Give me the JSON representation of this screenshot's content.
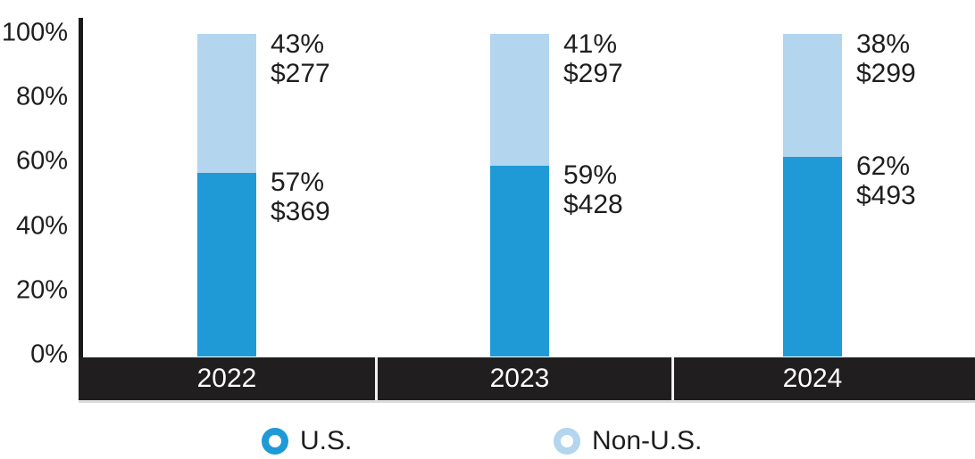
{
  "colors": {
    "us": "#1F9AD7",
    "non_us": "#B3D5EE",
    "axis": "#1A1A1A",
    "band": "#201E1E",
    "band_divider": "#F2F2F2",
    "band_label": "#FFFFFF",
    "text": "#1E1E1E"
  },
  "chart_data": {
    "type": "bar",
    "stacked": true,
    "orientation": "vertical",
    "categories": [
      "2022",
      "2023",
      "2024"
    ],
    "series": [
      {
        "name": "U.S.",
        "color": "#1F9AD7",
        "percents": [
          57,
          59,
          62
        ],
        "amounts": [
          "$369",
          "$428",
          "$493"
        ]
      },
      {
        "name": "Non-U.S.",
        "color": "#B3D5EE",
        "percents": [
          43,
          41,
          38
        ],
        "amounts": [
          "$277",
          "$297",
          "$299"
        ]
      }
    ],
    "yticks": [
      "0%",
      "20%",
      "40%",
      "60%",
      "80%",
      "100%"
    ],
    "ylim": [
      0,
      100
    ],
    "grid": false,
    "legend_position": "bottom",
    "annotation_format": "percent newline dollar-amount, right of each segment"
  }
}
